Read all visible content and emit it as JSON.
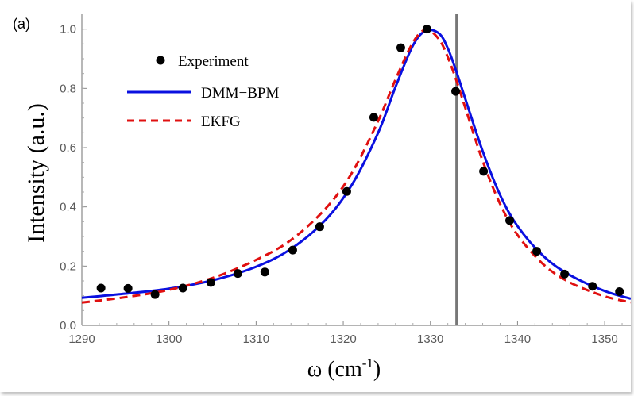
{
  "chart_data": {
    "type": "scatter",
    "panel_label": "(a)",
    "xlabel": "ω (cm",
    "xlabel_sup": "-1",
    "xlabel_close": ")",
    "ylabel": "Intensity (a.u.)",
    "xlim": [
      1290,
      1353
    ],
    "ylim": [
      0.0,
      1.05
    ],
    "xticks": [
      1290,
      1300,
      1310,
      1320,
      1330,
      1340,
      1350
    ],
    "yticks": [
      0.0,
      0.2,
      0.4,
      0.6,
      0.8,
      1.0
    ],
    "ytick_labels": [
      "0.0",
      "0.2",
      "0.4",
      "0.6",
      "0.8",
      "1.0"
    ],
    "vertical_line_x": 1333,
    "legend": {
      "position": "top-left",
      "entries": [
        "Experiment",
        "DMM−BPM",
        "EKFG"
      ]
    },
    "series": [
      {
        "name": "Experiment",
        "kind": "points",
        "color": "#000000",
        "x": [
          1292.2,
          1295.3,
          1298.4,
          1301.6,
          1304.8,
          1307.9,
          1311.0,
          1314.2,
          1317.3,
          1320.4,
          1323.5,
          1326.6,
          1329.6,
          1332.9,
          1336.1,
          1339.1,
          1342.2,
          1345.4,
          1348.6,
          1351.7
        ],
        "y": [
          0.126,
          0.125,
          0.104,
          0.126,
          0.145,
          0.175,
          0.18,
          0.254,
          0.333,
          0.452,
          0.702,
          0.937,
          1.0,
          0.79,
          0.52,
          0.354,
          0.25,
          0.173,
          0.132,
          0.114
        ]
      },
      {
        "name": "DMM−BPM",
        "kind": "line",
        "color": "#0a10e0",
        "style": "solid",
        "x": [
          1290,
          1295,
          1300,
          1305,
          1310,
          1314,
          1318,
          1321,
          1324,
          1326,
          1328,
          1329.5,
          1331,
          1332,
          1333,
          1334,
          1336,
          1338,
          1340,
          1343,
          1346,
          1350,
          1353
        ],
        "y": [
          0.093,
          0.107,
          0.124,
          0.152,
          0.198,
          0.258,
          0.357,
          0.475,
          0.65,
          0.805,
          0.945,
          0.995,
          0.985,
          0.935,
          0.855,
          0.765,
          0.588,
          0.44,
          0.335,
          0.233,
          0.17,
          0.116,
          0.09
        ]
      },
      {
        "name": "EKFG",
        "kind": "line",
        "color": "#e01010",
        "style": "dashed",
        "x": [
          1290,
          1295,
          1300,
          1305,
          1310,
          1314,
          1318,
          1321,
          1324,
          1326,
          1328,
          1329.5,
          1331,
          1332,
          1333,
          1334,
          1336,
          1338,
          1340,
          1343,
          1346,
          1350,
          1353
        ],
        "y": [
          0.077,
          0.095,
          0.12,
          0.16,
          0.221,
          0.288,
          0.395,
          0.515,
          0.69,
          0.83,
          0.955,
          0.998,
          0.965,
          0.905,
          0.825,
          0.735,
          0.555,
          0.41,
          0.305,
          0.205,
          0.145,
          0.098,
          0.078
        ]
      }
    ]
  }
}
